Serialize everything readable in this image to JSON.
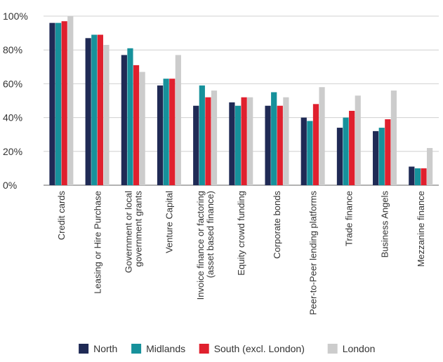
{
  "chart_data": {
    "type": "bar",
    "categories": [
      "Credit cards",
      "Leasing or Hire Purchase",
      "Government or local government grants",
      "Venture Capital",
      "Invoice finance or factoring (asset based finance)",
      "Equity crowd funding",
      "Corporate bonds",
      "Peer-to-Peer lending platforms",
      "Trade finance",
      "Business Angels",
      "Mezzanine finance"
    ],
    "category_label_lines": [
      [
        "Credit cards"
      ],
      [
        "Leasing or Hire Purchase"
      ],
      [
        "Government or local",
        "government grants"
      ],
      [
        "Venture Capital"
      ],
      [
        "Invoice finance or factoring",
        "(asset based finance)"
      ],
      [
        "Equity crowd funding"
      ],
      [
        "Corporate bonds"
      ],
      [
        "Peer-to-Peer lending platforms"
      ],
      [
        "Trade finance"
      ],
      [
        "Business Angels"
      ],
      [
        "Mezzanine finance"
      ]
    ],
    "series": [
      {
        "name": "North",
        "color": "#1f2a55",
        "values": [
          96,
          87,
          77,
          59,
          47,
          49,
          47,
          40,
          34,
          32,
          11
        ]
      },
      {
        "name": "Midlands",
        "color": "#16919b",
        "values": [
          96,
          89,
          81,
          63,
          59,
          47,
          55,
          38,
          40,
          34,
          10
        ]
      },
      {
        "name": "South (excl. London)",
        "color": "#e0202e",
        "values": [
          97,
          89,
          71,
          63,
          52,
          52,
          47,
          48,
          44,
          39,
          10
        ]
      },
      {
        "name": "London",
        "color": "#cccccc",
        "values": [
          100,
          83,
          67,
          77,
          56,
          52,
          52,
          58,
          53,
          56,
          22
        ]
      }
    ],
    "yticks": [
      "0%",
      "20%",
      "40%",
      "60%",
      "80%",
      "100%"
    ],
    "ylim": [
      0,
      100
    ],
    "grid": true,
    "legend_position": "bottom",
    "xlabel": "",
    "ylabel": ""
  }
}
